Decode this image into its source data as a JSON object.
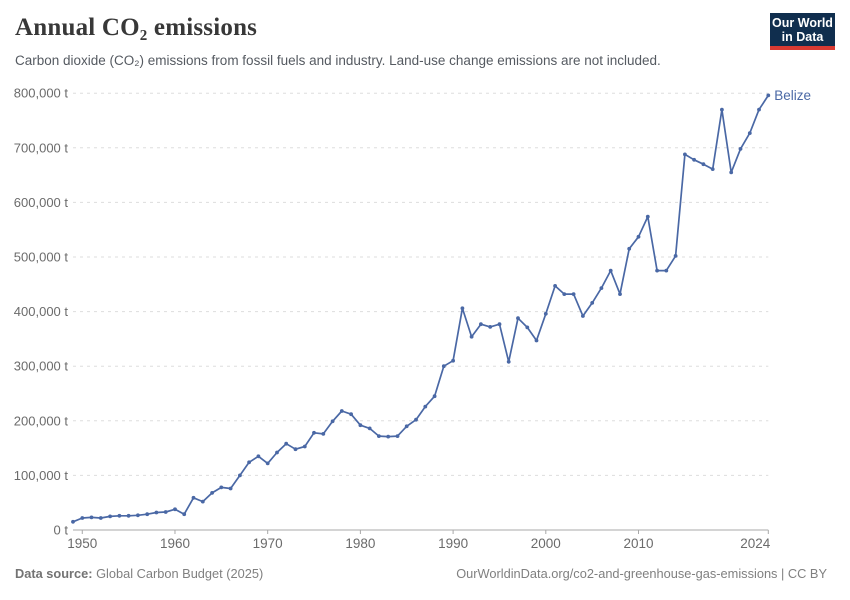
{
  "header": {
    "title": "Annual CO₂ emissions",
    "subtitle": "Carbon dioxide (CO₂) emissions from fossil fuels and industry. Land-use change emissions are not included.",
    "logo": {
      "line1": "Our World",
      "line2": "in Data"
    }
  },
  "chart_data": {
    "type": "line",
    "title": "Annual CO₂ emissions",
    "xlabel": "",
    "ylabel": "",
    "xlim": [
      1949,
      2024
    ],
    "ylim": [
      0,
      800000
    ],
    "grid": "horizontal-dashed",
    "legend_position": "end-of-line-label",
    "x_ticks": [
      1950,
      1960,
      1970,
      1980,
      1990,
      2000,
      2010,
      2024
    ],
    "y_ticks": [
      0,
      100000,
      200000,
      300000,
      400000,
      500000,
      600000,
      700000,
      800000
    ],
    "y_tick_suffix": " t",
    "series": [
      {
        "name": "Belize",
        "color": "#4a68a5",
        "x": [
          1949,
          1950,
          1951,
          1952,
          1953,
          1954,
          1955,
          1956,
          1957,
          1958,
          1959,
          1960,
          1961,
          1962,
          1963,
          1964,
          1965,
          1966,
          1967,
          1968,
          1969,
          1970,
          1971,
          1972,
          1973,
          1974,
          1975,
          1976,
          1977,
          1978,
          1979,
          1980,
          1981,
          1982,
          1983,
          1984,
          1985,
          1986,
          1987,
          1988,
          1989,
          1990,
          1991,
          1992,
          1993,
          1994,
          1995,
          1996,
          1997,
          1998,
          1999,
          2000,
          2001,
          2002,
          2003,
          2004,
          2005,
          2006,
          2007,
          2008,
          2009,
          2010,
          2011,
          2012,
          2013,
          2014,
          2015,
          2016,
          2017,
          2018,
          2019,
          2020,
          2021,
          2022,
          2023,
          2024
        ],
        "values": [
          15000,
          22000,
          23000,
          22000,
          25000,
          26000,
          26000,
          27000,
          29000,
          32000,
          33000,
          38000,
          29000,
          59000,
          52000,
          68000,
          78000,
          76000,
          100000,
          124000,
          135000,
          122000,
          142000,
          158000,
          148000,
          153000,
          178000,
          176000,
          199000,
          218000,
          212000,
          192000,
          186000,
          172000,
          171000,
          172000,
          190000,
          202000,
          226000,
          245000,
          300000,
          310000,
          406000,
          354000,
          377000,
          372000,
          377000,
          308000,
          388000,
          371000,
          347000,
          396000,
          447000,
          432000,
          432000,
          392000,
          416000,
          443000,
          475000,
          432000,
          515000,
          537000,
          574000,
          475000,
          475000,
          502000,
          688000,
          678000,
          670000,
          661000,
          770000,
          655000,
          698000,
          727000,
          770000,
          796000
        ]
      }
    ]
  },
  "footer": {
    "source_label": "Data source:",
    "source_text": " Global Carbon Budget (2025)",
    "right_text": "OurWorldinData.org/co2-and-greenhouse-gas-emissions | CC BY"
  },
  "colors": {
    "line": "#4a68a5",
    "entity_label": "#4a68a5",
    "gridline": "#dddddd",
    "axis_line": "#a8a8a8",
    "tick_text": "#6b6b6b",
    "logo_bg": "#102e4e",
    "logo_bar": "#d93a32"
  }
}
